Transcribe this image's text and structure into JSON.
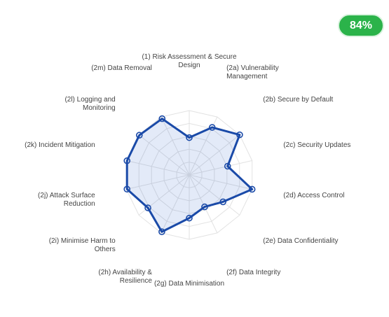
{
  "score": "84%",
  "chart_data": {
    "type": "radar",
    "categories": [
      "(1) Risk Assessment & Secure Design",
      "(2a) Vulnerability Management",
      "(2b) Secure by Default",
      "(2c) Security Updates",
      "(2d) Access Control",
      "(2e) Data Confidentiality",
      "(2f) Data Integrity",
      "(2g) Data Minimisation",
      "(2h) Availability & Resilience",
      "(2i) Minimise Harm to Others",
      "(2j) Attack Surface Reduction",
      "(2k) Incident Mitigation",
      "(2l) Logging and Monitoring",
      "(2m) Data Removal"
    ],
    "values": [
      58,
      82,
      100,
      61,
      100,
      67,
      55,
      67,
      98,
      82,
      99,
      99,
      99,
      97
    ],
    "color": "#1a4aa8",
    "rlim": [
      0,
      100
    ],
    "rticks": [
      20,
      40,
      60,
      80,
      100
    ],
    "grid": true
  }
}
